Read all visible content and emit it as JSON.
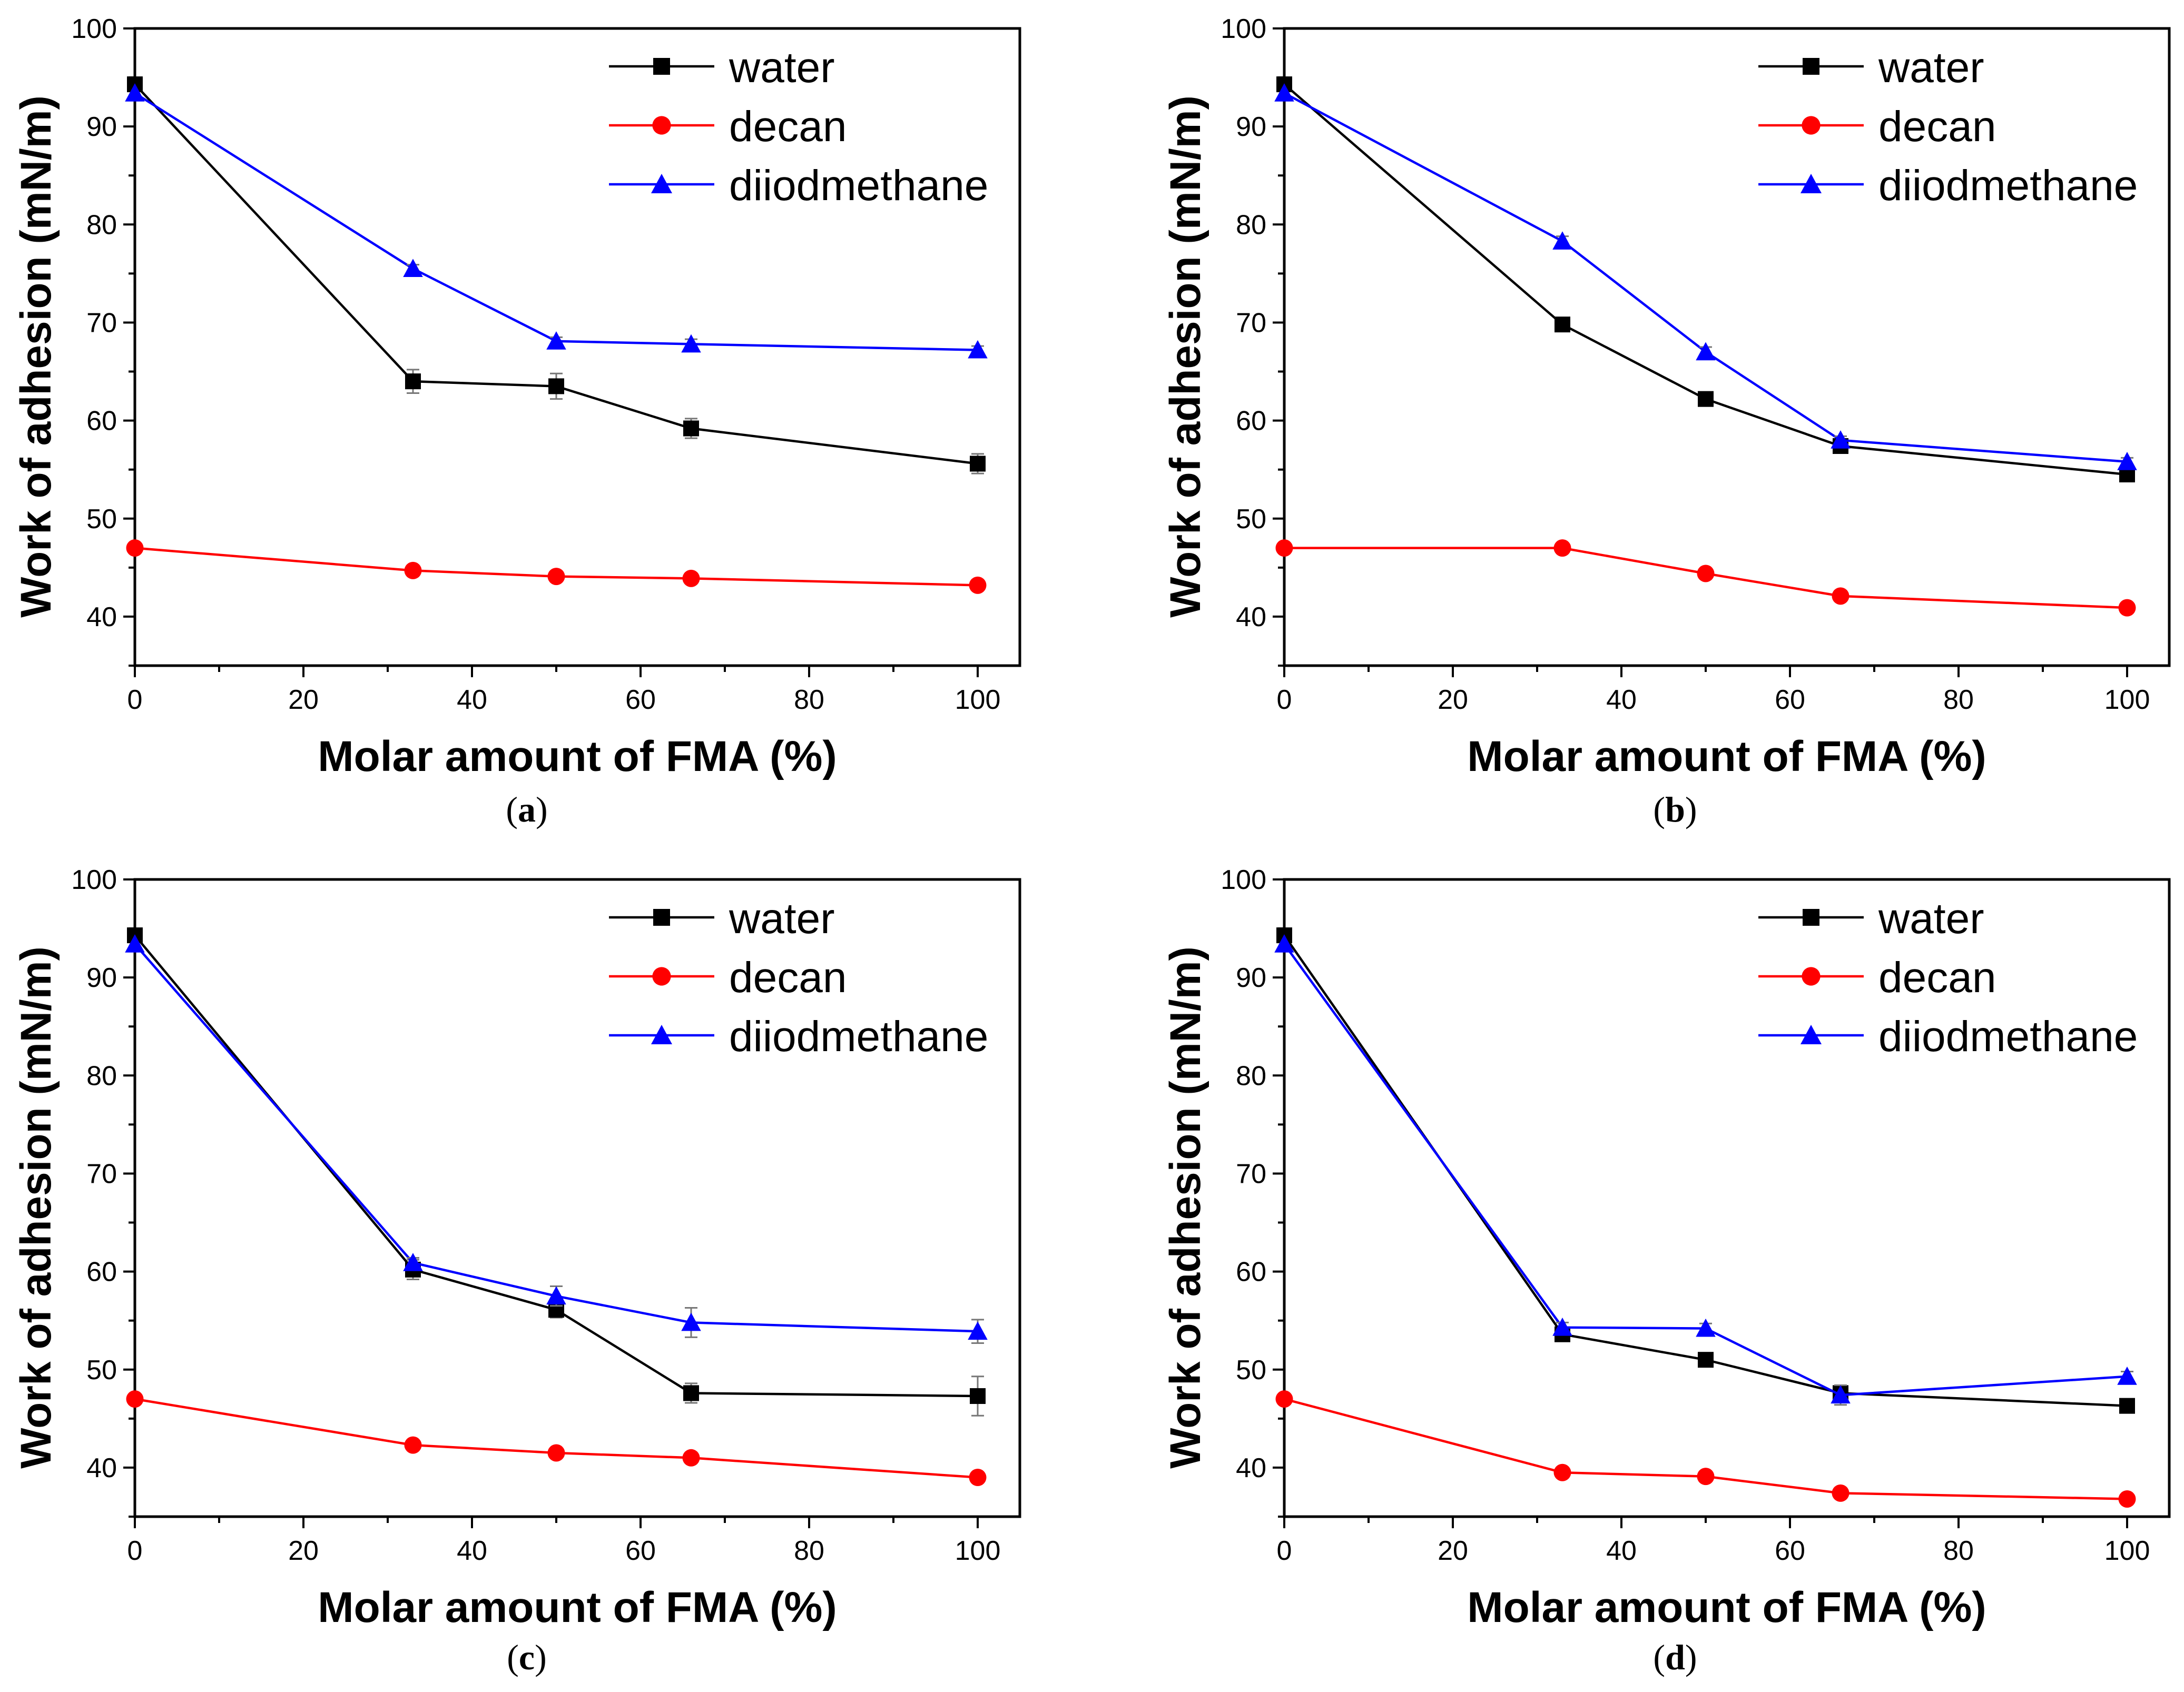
{
  "chart_data": [
    {
      "type": "line",
      "caption": "a",
      "xlabel": "Molar amount of FMA (%)",
      "ylabel": "Work of adhesion (mN/m)",
      "xlim": [
        0,
        105
      ],
      "ylim": [
        35,
        100
      ],
      "xticks": [
        0,
        20,
        40,
        60,
        80,
        100
      ],
      "yticks": [
        40,
        50,
        60,
        70,
        80,
        90,
        100
      ],
      "x": [
        0,
        33,
        50,
        66,
        100
      ],
      "legend_position": "top-right",
      "series": [
        {
          "name": "water",
          "color": "#000000",
          "marker": "square",
          "values": [
            94.3,
            64.0,
            63.5,
            59.2,
            55.6
          ],
          "errors": [
            0.6,
            1.2,
            1.3,
            1.0,
            1.0
          ]
        },
        {
          "name": "decan",
          "color": "#ff0000",
          "marker": "circle",
          "values": [
            47.0,
            44.7,
            44.1,
            43.9,
            43.2
          ],
          "errors": [
            0,
            0,
            0,
            0,
            0
          ]
        },
        {
          "name": "diiodmethane",
          "color": "#0000ff",
          "marker": "triangle",
          "values": [
            93.4,
            75.5,
            68.1,
            67.8,
            67.2
          ],
          "errors": [
            0,
            0.4,
            0.4,
            0.5,
            0.4
          ]
        }
      ]
    },
    {
      "type": "line",
      "caption": "b",
      "xlabel": "Molar amount of FMA (%)",
      "ylabel": "Work of adhesion (mN/m)",
      "xlim": [
        0,
        105
      ],
      "ylim": [
        35,
        100
      ],
      "xticks": [
        0,
        20,
        40,
        60,
        80,
        100
      ],
      "yticks": [
        40,
        50,
        60,
        70,
        80,
        90,
        100
      ],
      "x": [
        0,
        33,
        50,
        66,
        100
      ],
      "legend_position": "top-right",
      "series": [
        {
          "name": "water",
          "color": "#000000",
          "marker": "square",
          "values": [
            94.3,
            69.8,
            62.2,
            57.4,
            54.5
          ],
          "errors": [
            0.6,
            0.5,
            0.5,
            0.5,
            0.5
          ]
        },
        {
          "name": "decan",
          "color": "#ff0000",
          "marker": "circle",
          "values": [
            47.0,
            47.0,
            44.4,
            42.1,
            40.9
          ],
          "errors": [
            0,
            0,
            0,
            0,
            0
          ]
        },
        {
          "name": "diiodmethane",
          "color": "#0000ff",
          "marker": "triangle",
          "values": [
            93.4,
            78.3,
            67.0,
            58.0,
            55.8
          ],
          "errors": [
            0,
            0.5,
            0.5,
            0.4,
            0.4
          ]
        }
      ]
    },
    {
      "type": "line",
      "caption": "c",
      "xlabel": "Molar amount of FMA (%)",
      "ylabel": "Work of adhesion (mN/m)",
      "xlim": [
        0,
        105
      ],
      "ylim": [
        35,
        100
      ],
      "xticks": [
        0,
        20,
        40,
        60,
        80,
        100
      ],
      "yticks": [
        40,
        50,
        60,
        70,
        80,
        90,
        100
      ],
      "x": [
        0,
        33,
        50,
        66,
        100
      ],
      "legend_position": "top-right",
      "series": [
        {
          "name": "water",
          "color": "#000000",
          "marker": "square",
          "values": [
            94.3,
            60.2,
            56.1,
            47.6,
            47.3
          ],
          "errors": [
            0.6,
            1.0,
            0.8,
            1.0,
            2.0
          ]
        },
        {
          "name": "decan",
          "color": "#ff0000",
          "marker": "circle",
          "values": [
            47.0,
            42.3,
            41.5,
            41.0,
            39.0
          ],
          "errors": [
            0,
            0,
            0,
            0,
            0
          ]
        },
        {
          "name": "diiodmethane",
          "color": "#0000ff",
          "marker": "triangle",
          "values": [
            93.4,
            60.9,
            57.5,
            54.8,
            53.9
          ],
          "errors": [
            0,
            0.5,
            1.0,
            1.5,
            1.2
          ]
        }
      ]
    },
    {
      "type": "line",
      "caption": "d",
      "xlabel": "Molar amount of FMA (%)",
      "ylabel": "Work of adhesion (mN/m)",
      "xlim": [
        0,
        105
      ],
      "ylim": [
        35,
        100
      ],
      "xticks": [
        0,
        20,
        40,
        60,
        80,
        100
      ],
      "yticks": [
        40,
        50,
        60,
        70,
        80,
        90,
        100
      ],
      "x": [
        0,
        33,
        50,
        66,
        100
      ],
      "legend_position": "top-right",
      "series": [
        {
          "name": "water",
          "color": "#000000",
          "marker": "square",
          "values": [
            94.3,
            53.6,
            51.0,
            47.6,
            46.3
          ],
          "errors": [
            0.6,
            0.5,
            0.5,
            0.8,
            0.6
          ]
        },
        {
          "name": "decan",
          "color": "#ff0000",
          "marker": "circle",
          "values": [
            47.0,
            39.5,
            39.1,
            37.4,
            36.8
          ],
          "errors": [
            0,
            0,
            0,
            0,
            0
          ]
        },
        {
          "name": "diiodmethane",
          "color": "#0000ff",
          "marker": "triangle",
          "values": [
            93.4,
            54.3,
            54.2,
            47.4,
            49.3
          ],
          "errors": [
            0,
            0.5,
            0.5,
            1.0,
            0.5
          ]
        }
      ]
    }
  ]
}
